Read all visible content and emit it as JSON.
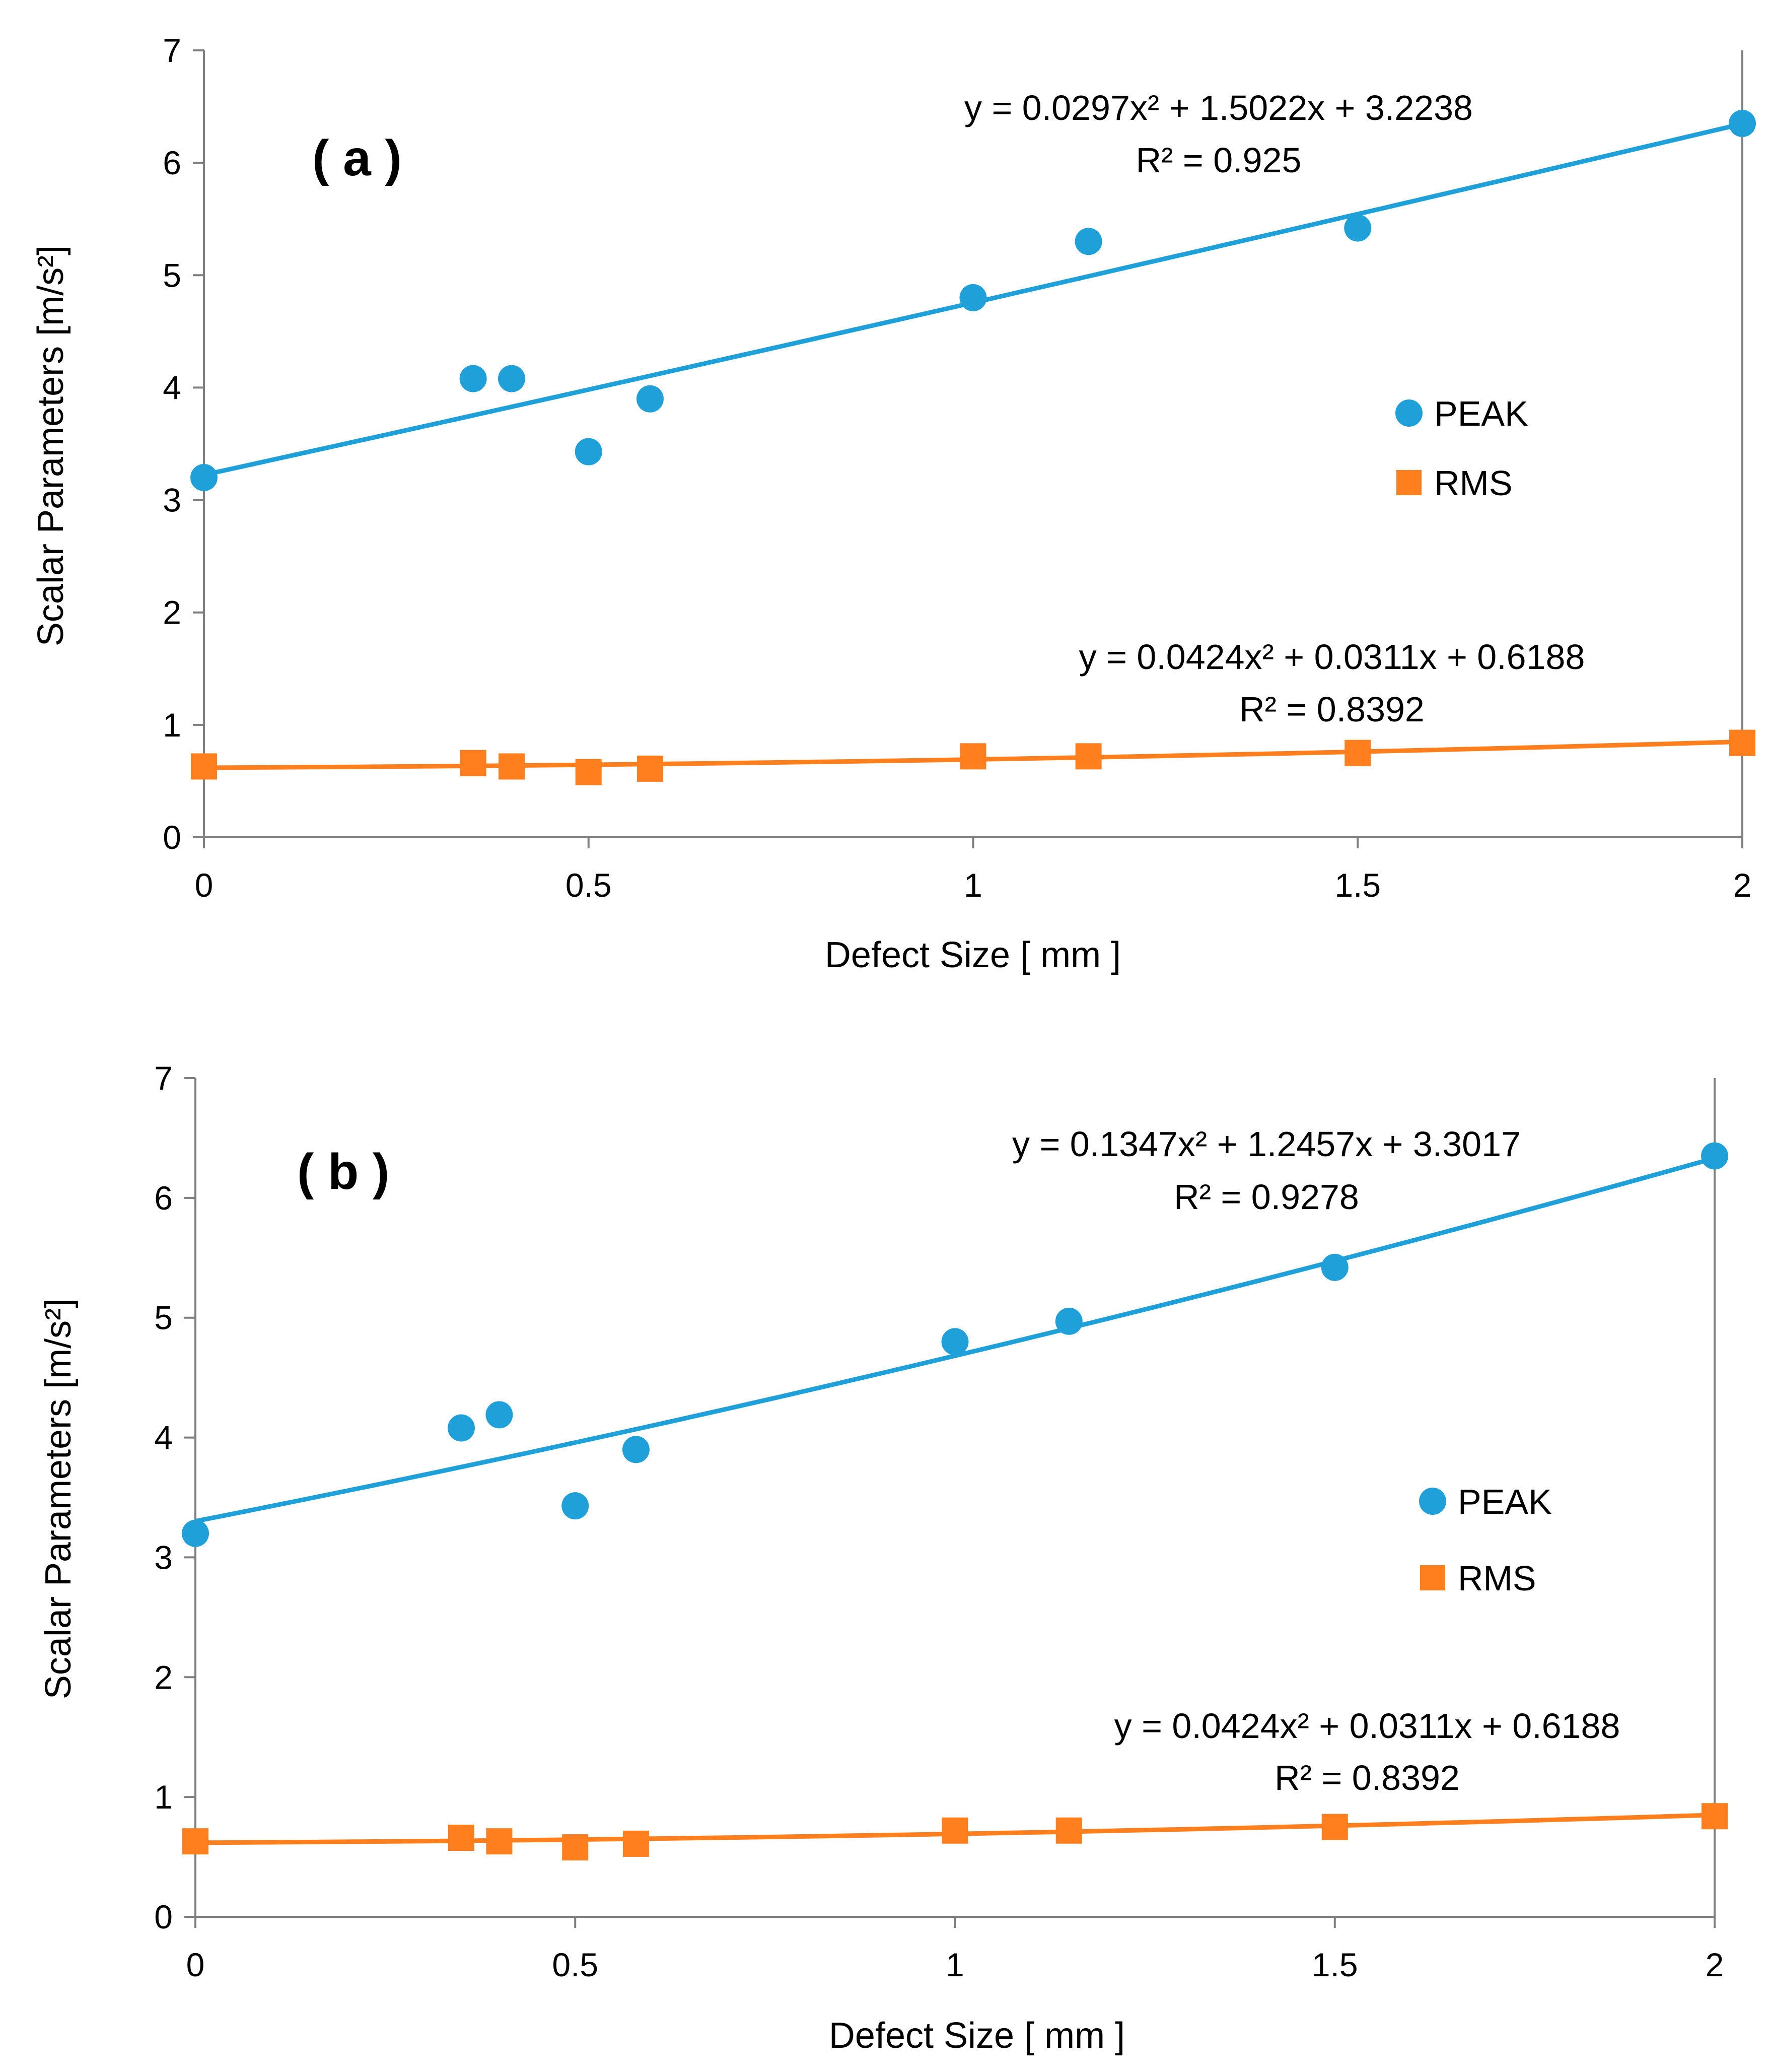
{
  "chart_data": [
    {
      "type": "scatter",
      "panel_label": "( a )",
      "xlabel": "Defect Size  [ mm ]",
      "ylabel": "Scalar Parameters [m/s²]",
      "xlim": [
        0,
        2
      ],
      "ylim": [
        0,
        7
      ],
      "x_ticks": [
        "0",
        "0.5",
        "1",
        "1.5",
        "2"
      ],
      "y_ticks": [
        "0",
        "1",
        "2",
        "3",
        "4",
        "5",
        "6",
        "7"
      ],
      "legend": [
        "PEAK",
        "RMS"
      ],
      "legend_position": "right",
      "series": [
        {
          "name": "PEAK",
          "color": "#1fa0d9",
          "marker": "circle",
          "x": [
            0,
            0.35,
            0.4,
            0.5,
            0.58,
            1,
            1.15,
            1.5,
            2
          ],
          "y": [
            3.2,
            4.08,
            4.08,
            3.43,
            3.9,
            4.8,
            5.3,
            5.42,
            6.35
          ],
          "trendline": {
            "type": "poly2",
            "coeffs": [
              0.0297,
              1.5022,
              3.2238
            ],
            "equation": "y = 0.0297x² + 1.5022x + 3.2238",
            "r2": "R² = 0.925"
          }
        },
        {
          "name": "RMS",
          "color": "#ff7f1e",
          "marker": "square",
          "x": [
            0,
            0.35,
            0.4,
            0.5,
            0.58,
            1,
            1.15,
            1.5,
            2
          ],
          "y": [
            0.63,
            0.66,
            0.63,
            0.58,
            0.61,
            0.72,
            0.72,
            0.75,
            0.84
          ],
          "trendline": {
            "type": "poly2",
            "coeffs": [
              0.0424,
              0.0311,
              0.6188
            ],
            "equation": "y = 0.0424x² + 0.0311x + 0.6188",
            "r2": "R² = 0.8392"
          }
        }
      ]
    },
    {
      "type": "scatter",
      "panel_label": "( b )",
      "xlabel": "Defect Size  [ mm ]",
      "ylabel": "Scalar Parameters [m/s²]",
      "xlim": [
        0,
        2
      ],
      "ylim": [
        0,
        7
      ],
      "x_ticks": [
        "0",
        "0.5",
        "1",
        "1.5",
        "2"
      ],
      "y_ticks": [
        "0",
        "1",
        "2",
        "3",
        "4",
        "5",
        "6",
        "7"
      ],
      "legend": [
        "PEAK",
        "RMS"
      ],
      "legend_position": "right",
      "series": [
        {
          "name": "PEAK",
          "color": "#1fa0d9",
          "marker": "circle",
          "x": [
            0,
            0.35,
            0.4,
            0.5,
            0.58,
            1,
            1.15,
            1.5,
            2
          ],
          "y": [
            3.2,
            4.08,
            4.19,
            3.43,
            3.9,
            4.8,
            4.97,
            5.42,
            6.35
          ],
          "trendline": {
            "type": "poly2",
            "coeffs": [
              0.1347,
              1.2457,
              3.3017
            ],
            "equation": "y = 0.1347x² + 1.2457x + 3.3017",
            "r2": "R² = 0.9278"
          }
        },
        {
          "name": "RMS",
          "color": "#ff7f1e",
          "marker": "square",
          "x": [
            0,
            0.35,
            0.4,
            0.5,
            0.58,
            1,
            1.15,
            1.5,
            2
          ],
          "y": [
            0.63,
            0.66,
            0.63,
            0.58,
            0.61,
            0.72,
            0.72,
            0.75,
            0.84
          ],
          "trendline": {
            "type": "poly2",
            "coeffs": [
              0.0424,
              0.0311,
              0.6188
            ],
            "equation": "y = 0.0424x² + 0.0311x + 0.6188",
            "r2": "R² = 0.8392"
          }
        }
      ]
    }
  ]
}
